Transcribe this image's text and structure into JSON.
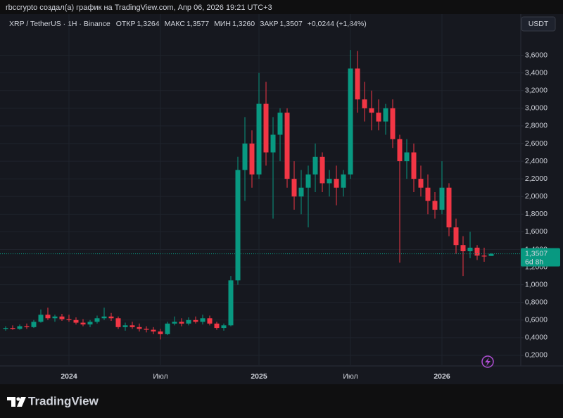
{
  "header": {
    "author_line": "rbccrypto создал(а) график на TradingView.com, Апр 06, 2026 19:21 UTC+3",
    "symbol": "XRP / TetherUS · 1H · Binance",
    "open_label": "ОТКР",
    "open": {
      "value": 1.3264,
      "label": "1,3264"
    },
    "high_label": "МАКС",
    "high": {
      "value": 1.3577,
      "label": "1,3577"
    },
    "low_label": "МИН",
    "low": {
      "value": 1.326,
      "label": "1,3260"
    },
    "close_label": "ЗАКР",
    "close": {
      "value": 1.3507,
      "label": "1,3507"
    },
    "change": "+0,0244 (+1,84%)",
    "currency": "USDT"
  },
  "chart_data": {
    "type": "candlestick",
    "up_color": "#089981",
    "down_color": "#f23645",
    "grid": true,
    "categories": [
      null,
      null,
      null,
      null,
      null,
      null,
      null,
      null,
      null,
      "2024",
      null,
      null,
      null,
      null,
      null,
      null,
      null,
      null,
      null,
      null,
      null,
      null,
      "Июл",
      null,
      null,
      null,
      null,
      null,
      null,
      null,
      null,
      null,
      null,
      null,
      null,
      null,
      "2025",
      null,
      null,
      null,
      null,
      null,
      null,
      null,
      null,
      null,
      null,
      null,
      null,
      "Июл",
      null,
      null,
      null,
      null,
      null,
      null,
      null,
      null,
      null,
      null,
      null,
      null,
      "2026",
      null,
      null,
      null,
      null,
      null,
      null,
      null
    ],
    "open": [
      0.5,
      0.51,
      0.5,
      0.53,
      0.52,
      0.58,
      0.66,
      0.62,
      0.64,
      0.61,
      0.6,
      0.57,
      0.55,
      0.58,
      0.62,
      0.64,
      0.62,
      0.52,
      0.54,
      0.52,
      0.5,
      0.49,
      0.47,
      0.44,
      0.56,
      0.58,
      0.56,
      0.6,
      0.58,
      0.62,
      0.56,
      0.51,
      0.54,
      1.05,
      2.3,
      2.6,
      2.25,
      3.05,
      2.5,
      2.7,
      2.95,
      2.2,
      2.0,
      2.1,
      2.25,
      2.45,
      2.15,
      2.2,
      2.1,
      2.25,
      3.45,
      3.1,
      3.0,
      2.95,
      2.85,
      3.0,
      2.65,
      2.4,
      2.5,
      2.2,
      2.1,
      1.95,
      1.85,
      2.1,
      1.65,
      1.45,
      1.38,
      1.42,
      1.33,
      1.3264
    ],
    "high": [
      0.53,
      0.54,
      0.55,
      0.56,
      0.6,
      0.72,
      0.74,
      0.66,
      0.67,
      0.66,
      0.63,
      0.61,
      0.6,
      0.65,
      0.74,
      0.68,
      0.64,
      0.57,
      0.58,
      0.56,
      0.53,
      0.52,
      0.5,
      0.58,
      0.64,
      0.62,
      0.63,
      0.64,
      0.66,
      0.65,
      0.58,
      0.56,
      1.1,
      2.45,
      2.9,
      2.75,
      3.4,
      3.3,
      2.9,
      3.0,
      3.0,
      2.4,
      2.3,
      2.35,
      2.6,
      2.5,
      2.3,
      2.35,
      2.3,
      3.66,
      3.65,
      3.3,
      3.2,
      3.1,
      3.05,
      3.1,
      2.7,
      2.65,
      2.6,
      2.35,
      2.25,
      2.05,
      2.4,
      2.15,
      1.75,
      1.55,
      1.6,
      1.45,
      1.42,
      1.3577
    ],
    "low": [
      0.48,
      0.49,
      0.49,
      0.5,
      0.51,
      0.57,
      0.6,
      0.58,
      0.59,
      0.58,
      0.55,
      0.53,
      0.52,
      0.56,
      0.6,
      0.59,
      0.5,
      0.48,
      0.5,
      0.47,
      0.46,
      0.44,
      0.38,
      0.43,
      0.54,
      0.53,
      0.54,
      0.56,
      0.55,
      0.54,
      0.49,
      0.48,
      0.53,
      1.0,
      1.95,
      2.1,
      2.2,
      2.35,
      1.75,
      2.4,
      2.1,
      1.85,
      1.8,
      1.65,
      2.05,
      2.05,
      2.0,
      1.9,
      2.0,
      2.2,
      2.95,
      2.85,
      2.75,
      2.75,
      2.7,
      2.55,
      1.25,
      2.2,
      2.05,
      2.0,
      1.8,
      1.75,
      1.8,
      1.55,
      1.35,
      1.1,
      1.3,
      1.28,
      1.26,
      1.326
    ],
    "close": [
      0.51,
      0.5,
      0.53,
      0.52,
      0.58,
      0.66,
      0.62,
      0.64,
      0.61,
      0.6,
      0.57,
      0.55,
      0.58,
      0.62,
      0.64,
      0.62,
      0.52,
      0.54,
      0.52,
      0.5,
      0.49,
      0.47,
      0.44,
      0.56,
      0.58,
      0.56,
      0.6,
      0.58,
      0.62,
      0.56,
      0.51,
      0.54,
      1.05,
      2.3,
      2.6,
      2.25,
      3.05,
      2.5,
      2.7,
      2.95,
      2.2,
      2.0,
      2.1,
      2.25,
      2.45,
      2.15,
      2.2,
      2.1,
      2.25,
      3.45,
      3.1,
      3.0,
      2.95,
      2.85,
      3.0,
      2.65,
      2.4,
      2.5,
      2.2,
      2.1,
      1.95,
      1.85,
      2.1,
      1.65,
      1.45,
      1.38,
      1.42,
      1.33,
      1.32,
      1.3507
    ],
    "ylim": [
      0.08,
      3.86
    ],
    "yticks": [
      {
        "value": 0.2,
        "label": "0,2000"
      },
      {
        "value": 0.4,
        "label": "0,4000"
      },
      {
        "value": 0.6,
        "label": "0,6000"
      },
      {
        "value": 0.8,
        "label": "0,8000"
      },
      {
        "value": 1.0,
        "label": "1,0000"
      },
      {
        "value": 1.2,
        "label": "1,2000"
      },
      {
        "value": 1.4,
        "label": "1,4000"
      },
      {
        "value": 1.6,
        "label": "1,6000"
      },
      {
        "value": 1.8,
        "label": "1,8000"
      },
      {
        "value": 2.0,
        "label": "2,0000"
      },
      {
        "value": 2.2,
        "label": "2,2000"
      },
      {
        "value": 2.4,
        "label": "2,4000"
      },
      {
        "value": 2.6,
        "label": "2,6000"
      },
      {
        "value": 2.8,
        "label": "2,8000"
      },
      {
        "value": 3.0,
        "label": "3,0000"
      },
      {
        "value": 3.2,
        "label": "3,2000"
      },
      {
        "value": 3.4,
        "label": "3,4000"
      },
      {
        "value": 3.6,
        "label": "3,6000"
      }
    ],
    "last_price": {
      "value": 1.3507,
      "label": "1,3507"
    },
    "countdown": "6d 8h"
  },
  "footer": {
    "logo": "TradingView"
  }
}
